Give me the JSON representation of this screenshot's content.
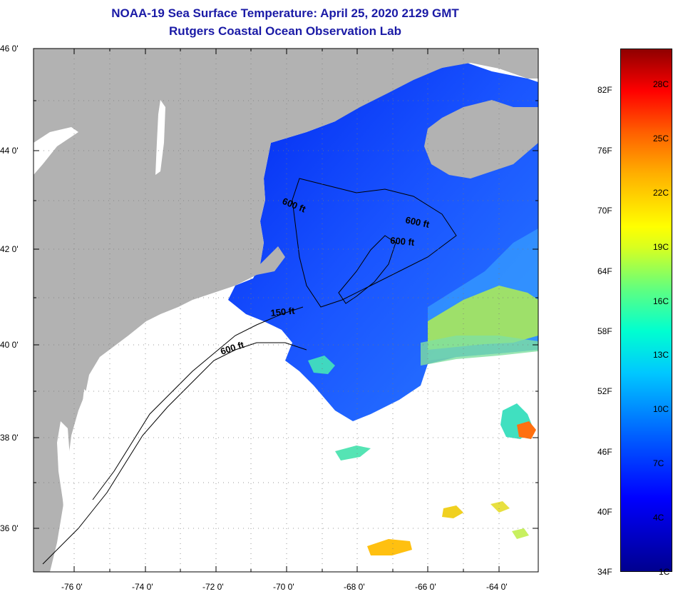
{
  "title_line1": "NOAA-19 Sea Surface Temperature:  April 25, 2020 2129 GMT",
  "title_line2": "Rutgers Coastal Ocean Observation Lab",
  "lat_labels": [
    {
      "lat": 46,
      "text": "46 0'"
    },
    {
      "lat": 44,
      "text": "44 0'"
    },
    {
      "lat": 42,
      "text": "42 0'"
    },
    {
      "lat": 40,
      "text": "40 0'"
    },
    {
      "lat": 38,
      "text": "38 0'"
    },
    {
      "lat": 36,
      "text": "36 0'"
    }
  ],
  "lon_labels": [
    {
      "lon": -76,
      "text": "-76 0'"
    },
    {
      "lon": -74,
      "text": "-74 0'"
    },
    {
      "lon": -72,
      "text": "-72 0'"
    },
    {
      "lon": -70,
      "text": "-70 0'"
    },
    {
      "lon": -68,
      "text": "-68 0'"
    },
    {
      "lon": -66,
      "text": "-66 0'"
    },
    {
      "lon": -64,
      "text": "-64 0'"
    }
  ],
  "contour_labels": [
    {
      "text": "600 ft",
      "lon": -69.7,
      "lat": 42.7
    },
    {
      "text": "600 ft",
      "lon": -66.7,
      "lat": 42.5
    },
    {
      "text": "600 ft",
      "lon": -67.3,
      "lat": 42.1
    },
    {
      "text": "150 ft",
      "lon": -70.0,
      "lat": 40.7
    },
    {
      "text": "600 ft",
      "lon": -71.4,
      "lat": 39.9
    }
  ],
  "colorbar": {
    "fahrenheit": [
      "82F",
      "76F",
      "70F",
      "64F",
      "58F",
      "52F",
      "46F",
      "40F",
      "34F"
    ],
    "celsius": [
      "28C",
      "25C",
      "22C",
      "19C",
      "16C",
      "13C",
      "10C",
      "7C",
      "4C",
      "1C"
    ]
  },
  "colors": {
    "land": "#b2b2b2",
    "water_cold": "#0a3cff",
    "no_data": "#ffffff"
  }
}
